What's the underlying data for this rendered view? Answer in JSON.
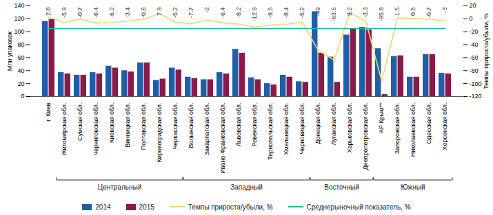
{
  "chart_data": {
    "type": "bar",
    "categories": [
      "г. Киев",
      "Житомирская обл.",
      "Сумская обл.",
      "Черниговская обл.",
      "Киевская обл.",
      "Винницкая обл.",
      "Полтавская обл.",
      "Кировоградская обл.",
      "Черкасская обл.",
      "Волынская обл.",
      "Закарпатская обл.",
      "Ивано-Франковская обл.",
      "Львовская обл.",
      "Ровенская обл.",
      "Тернопольская обл.",
      "Хмельницкая обл.",
      "Черновицкая обл.",
      "Донецкая обл.",
      "Луганская обл.",
      "Харьковская обл.",
      "Днепропетровская обл.",
      "АР Крым**",
      "Запорожская обл.",
      "Николаевская обл.",
      "Одесская обл.",
      "Херсонская обл."
    ],
    "groups": [
      null,
      "Центральный",
      "Центральный",
      "Центральный",
      "Центральный",
      "Центральный",
      "Центральный",
      "Центральный",
      "Центральный",
      "Западный",
      "Западный",
      "Западный",
      "Западный",
      "Западный",
      "Западный",
      "Западный",
      "Западный",
      "Восточный",
      "Восточный",
      "Восточный",
      "Восточный",
      "Южный",
      "Южный",
      "Южный",
      "Южный",
      "Южный"
    ],
    "ylabel": "Млн упаковок",
    "y2label": "Темпы прироста/убыли, %",
    "ylim": [
      0,
      140
    ],
    "yticks": [
      0,
      20,
      40,
      60,
      80,
      100,
      120,
      140
    ],
    "y2lim": [
      -120,
      20
    ],
    "y2ticks": [
      -120,
      -100,
      -80,
      -60,
      -40,
      -20,
      0,
      20
    ],
    "legend": "bottom",
    "series": [
      {
        "name": "2014",
        "color": "#1f5fa8",
        "values": [
          116,
          37,
          33,
          37,
          47,
          40,
          52,
          25,
          44,
          30,
          26,
          37,
          73,
          29,
          20,
          33,
          23,
          131,
          61,
          95,
          107,
          74,
          62,
          30,
          65,
          36
        ]
      },
      {
        "name": "2015",
        "color": "#8b1a4a",
        "values": [
          119,
          35,
          33,
          35,
          44,
          38,
          52,
          27,
          41,
          28,
          26,
          35,
          67,
          26,
          18,
          30,
          22,
          67,
          22,
          104,
          103,
          3,
          63,
          30,
          65,
          35
        ]
      },
      {
        "name": "Темпы прироста/убыли, %",
        "type": "line",
        "axis": "y2",
        "color": "#f5d46a",
        "data_labels": true,
        "values": [
          2.8,
          -5.9,
          -0.7,
          -6.4,
          -6.2,
          -3.4,
          -0.6,
          7.9,
          -5.2,
          -7.7,
          -2.0,
          -6.4,
          -8.2,
          -12.9,
          -9.5,
          -8.4,
          -5.2,
          -49.0,
          -63.5,
          9.2,
          -3.3,
          -95.8,
          1.5,
          0.5,
          -0.7,
          -3.0
        ]
      },
      {
        "name": "Среднерыночный показатель, %",
        "type": "line",
        "axis": "y2",
        "color": "#1fb5a4",
        "values": [
          -15,
          -15,
          -15,
          -15,
          -15,
          -15,
          -15,
          -15,
          -15,
          -15,
          -15,
          -15,
          -15,
          -15,
          -15,
          -15,
          -15,
          -15,
          -15,
          -15,
          -15,
          -15,
          -15,
          -15,
          -15,
          -15
        ]
      }
    ]
  }
}
